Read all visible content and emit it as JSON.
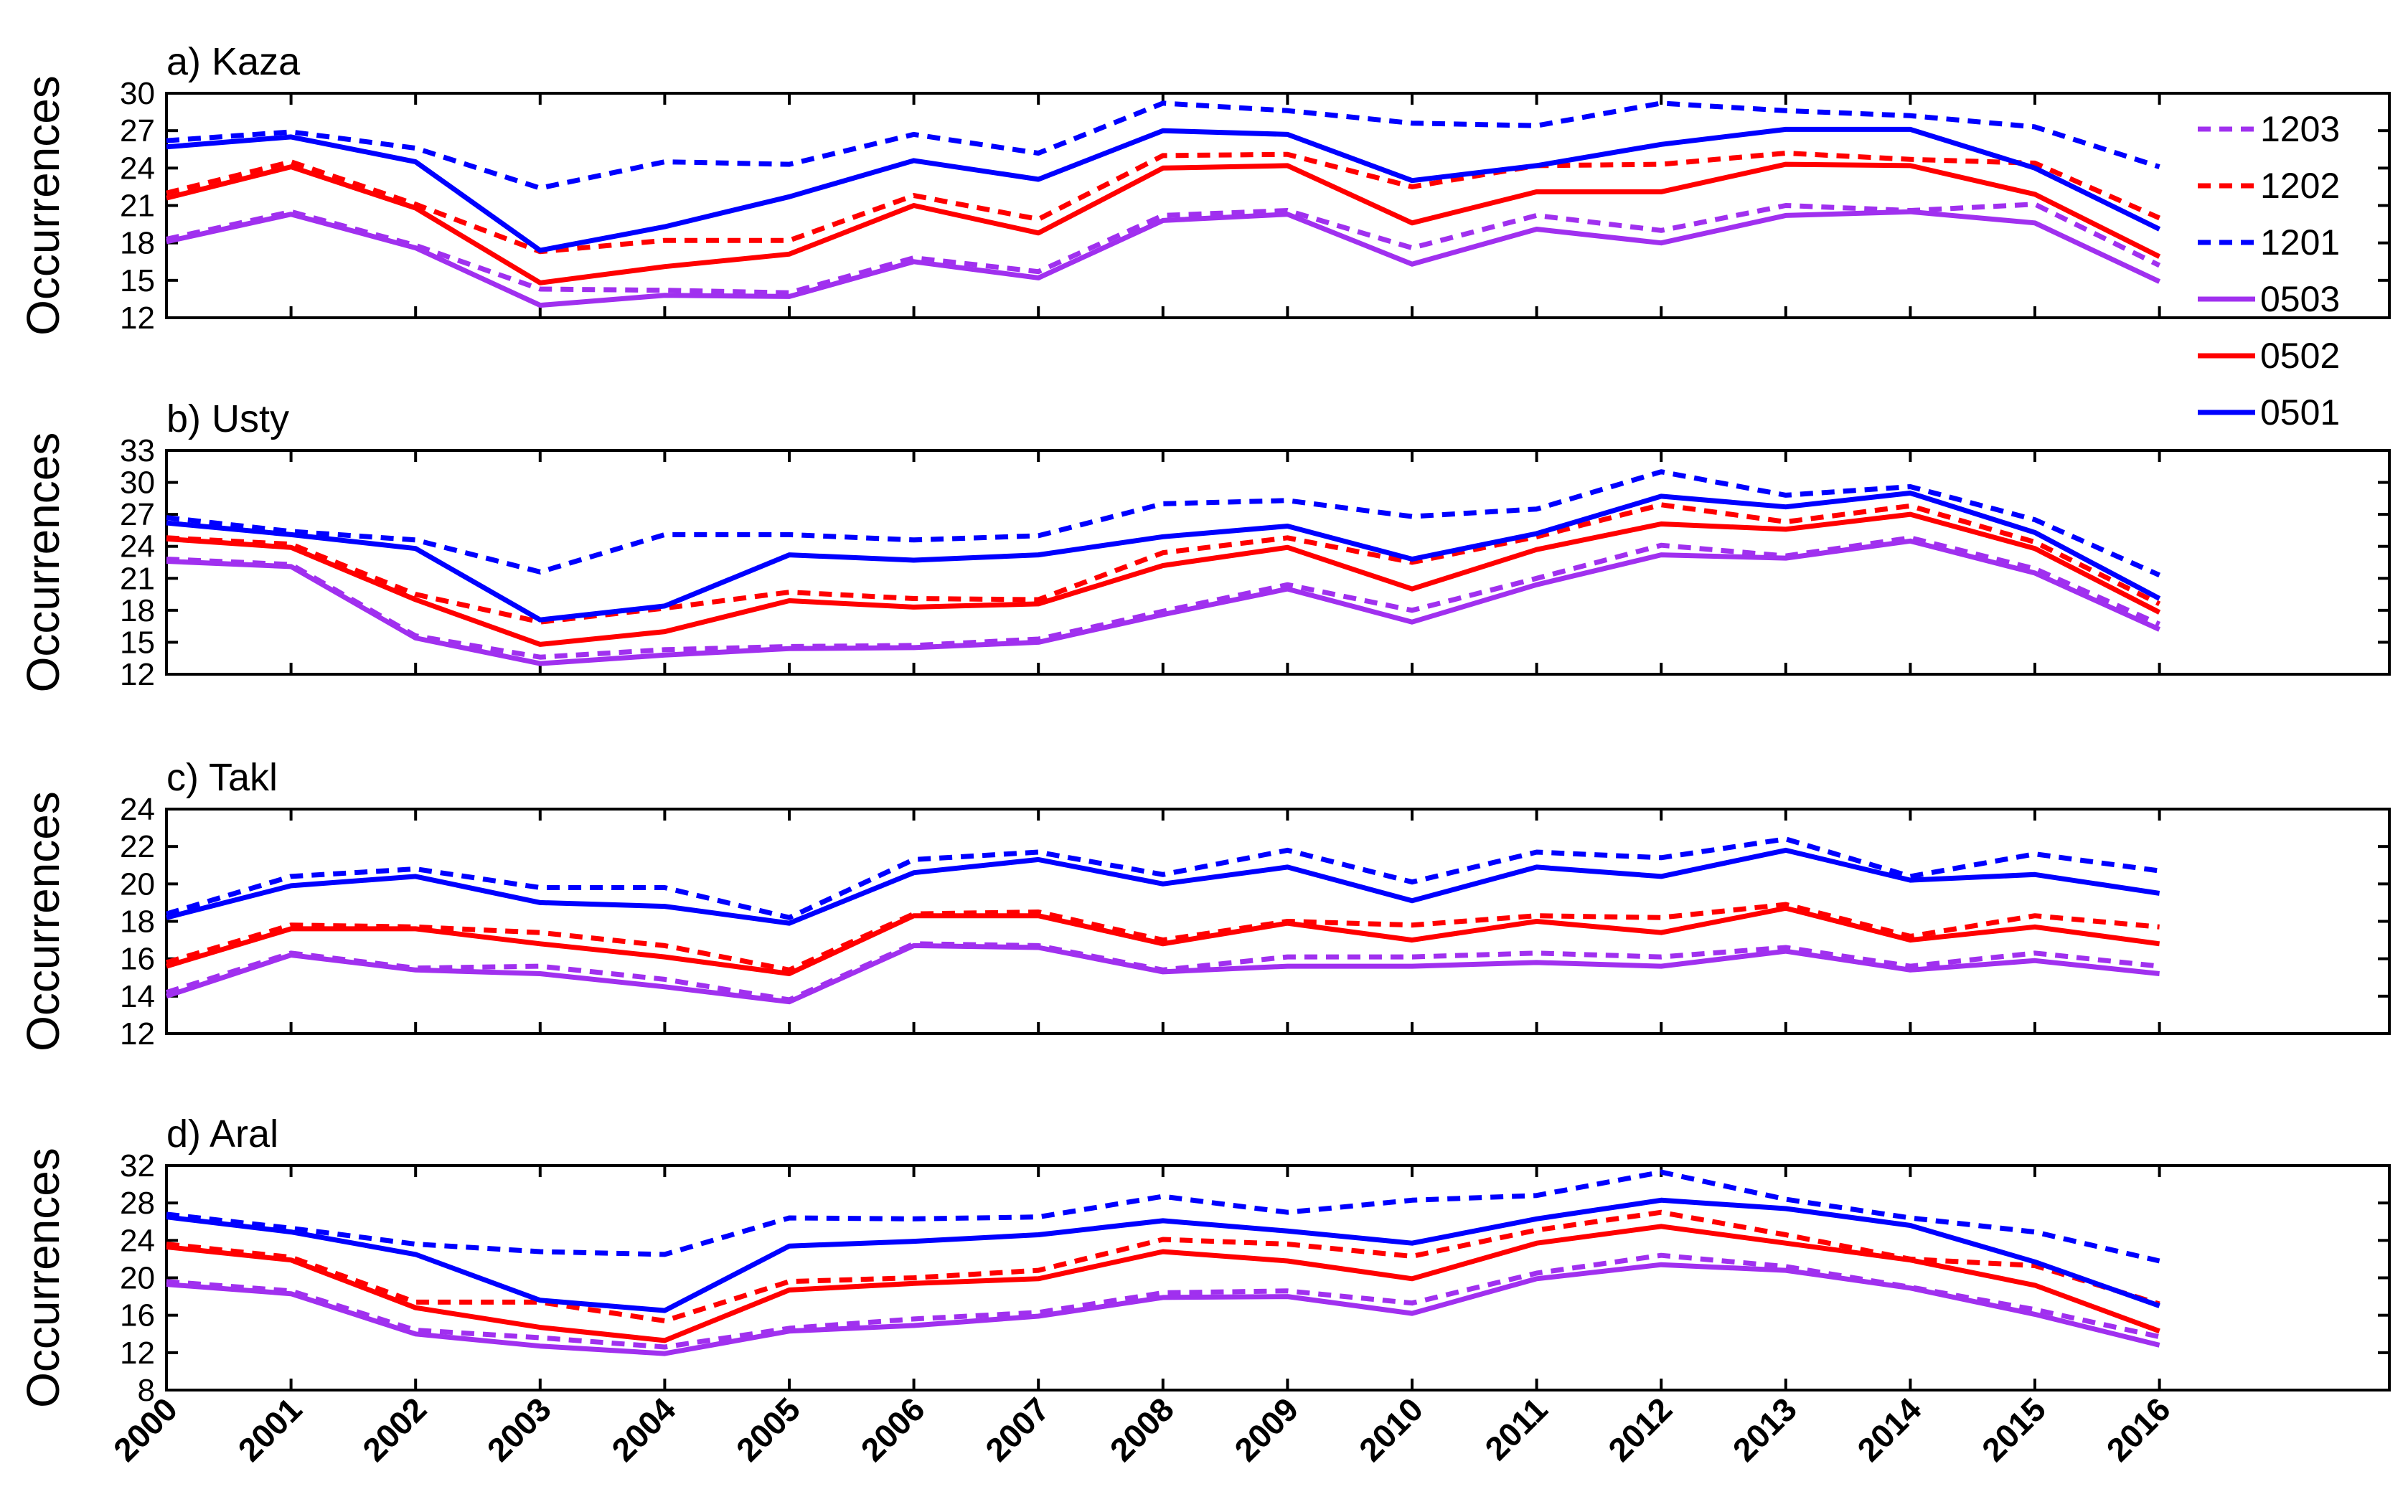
{
  "chart_data": [
    {
      "type": "line",
      "title": "a) Kaza",
      "ylabel": "Occurrences",
      "ylim": [
        12,
        30
      ],
      "yticks": [
        12,
        15,
        18,
        21,
        24,
        27,
        30
      ],
      "x": [
        2000,
        2001,
        2002,
        2003,
        2004,
        2005,
        2006,
        2007,
        2008,
        2009,
        2010,
        2011,
        2012,
        2013,
        2014,
        2015,
        2016
      ],
      "series": [
        {
          "name": "1203",
          "values": [
            18.3,
            20.5,
            17.8,
            14.3,
            14.2,
            14.0,
            16.8,
            15.7,
            20.2,
            20.6,
            17.6,
            20.2,
            19.0,
            21.0,
            20.6,
            21.1,
            16.2
          ]
        },
        {
          "name": "1202",
          "values": [
            22.0,
            24.5,
            21.1,
            17.3,
            18.2,
            18.2,
            21.8,
            19.9,
            25.0,
            25.1,
            22.5,
            24.2,
            24.3,
            25.2,
            24.7,
            24.4,
            20.0
          ]
        },
        {
          "name": "1201",
          "values": [
            26.2,
            26.9,
            25.6,
            22.4,
            24.5,
            24.3,
            26.7,
            25.2,
            29.2,
            28.6,
            27.6,
            27.4,
            29.2,
            28.6,
            28.2,
            27.3,
            24.1
          ]
        },
        {
          "name": "0503",
          "values": [
            18.1,
            20.3,
            17.6,
            13.0,
            13.8,
            13.7,
            16.5,
            15.2,
            19.8,
            20.3,
            16.3,
            19.1,
            18.0,
            20.2,
            20.5,
            19.6,
            14.9
          ]
        },
        {
          "name": "0502",
          "values": [
            21.6,
            24.1,
            20.8,
            14.8,
            16.1,
            17.1,
            21.0,
            18.8,
            24.0,
            24.2,
            19.6,
            22.1,
            22.1,
            24.3,
            24.2,
            21.9,
            16.9
          ]
        },
        {
          "name": "0501",
          "values": [
            25.7,
            26.5,
            24.5,
            17.4,
            19.3,
            21.7,
            24.6,
            23.1,
            27.0,
            26.7,
            23.0,
            24.2,
            25.9,
            27.1,
            27.1,
            24.0,
            19.1
          ]
        }
      ]
    },
    {
      "type": "line",
      "title": "b) Usty",
      "ylabel": "Occurrences",
      "ylim": [
        12,
        33
      ],
      "yticks": [
        12,
        15,
        18,
        21,
        24,
        27,
        30,
        33
      ],
      "x": [
        2000,
        2001,
        2002,
        2003,
        2004,
        2005,
        2006,
        2007,
        2008,
        2009,
        2010,
        2011,
        2012,
        2013,
        2014,
        2015,
        2016
      ],
      "series": [
        {
          "name": "1203",
          "values": [
            22.8,
            22.3,
            15.6,
            13.6,
            14.3,
            14.6,
            14.7,
            15.3,
            17.9,
            20.4,
            18.0,
            21.0,
            24.1,
            23.1,
            24.8,
            21.9,
            16.7
          ]
        },
        {
          "name": "1202",
          "values": [
            24.8,
            24.2,
            19.5,
            16.9,
            18.2,
            19.7,
            19.1,
            19.0,
            23.4,
            24.8,
            22.5,
            24.9,
            27.9,
            26.3,
            27.8,
            24.4,
            18.6
          ]
        },
        {
          "name": "1201",
          "values": [
            26.7,
            25.4,
            24.6,
            21.6,
            25.1,
            25.1,
            24.6,
            25.0,
            28.0,
            28.3,
            26.8,
            27.5,
            31.0,
            28.8,
            29.6,
            26.5,
            21.3
          ]
        },
        {
          "name": "0503",
          "values": [
            22.6,
            22.1,
            15.4,
            13.0,
            13.8,
            14.4,
            14.5,
            15.0,
            17.6,
            20.0,
            16.9,
            20.4,
            23.2,
            22.9,
            24.5,
            21.5,
            16.2
          ]
        },
        {
          "name": "0502",
          "values": [
            24.7,
            23.9,
            19.0,
            14.8,
            16.0,
            18.9,
            18.3,
            18.6,
            22.2,
            23.9,
            20.0,
            23.7,
            26.1,
            25.6,
            27.0,
            23.8,
            17.8
          ]
        },
        {
          "name": "0501",
          "values": [
            26.2,
            25.1,
            23.8,
            17.1,
            18.4,
            23.2,
            22.7,
            23.2,
            24.9,
            25.9,
            22.8,
            25.2,
            28.7,
            27.7,
            29.0,
            25.3,
            19.1
          ]
        }
      ]
    },
    {
      "type": "line",
      "title": "c) Takl",
      "ylabel": "Occurrences",
      "ylim": [
        12,
        24
      ],
      "yticks": [
        12,
        14,
        16,
        18,
        20,
        22,
        24
      ],
      "x": [
        2000,
        2001,
        2002,
        2003,
        2004,
        2005,
        2006,
        2007,
        2008,
        2009,
        2010,
        2011,
        2012,
        2013,
        2014,
        2015,
        2016
      ],
      "series": [
        {
          "name": "1203",
          "values": [
            14.2,
            16.3,
            15.5,
            15.6,
            14.9,
            13.8,
            16.8,
            16.7,
            15.4,
            16.1,
            16.1,
            16.3,
            16.1,
            16.6,
            15.6,
            16.3,
            15.6
          ]
        },
        {
          "name": "1202",
          "values": [
            15.8,
            17.8,
            17.7,
            17.4,
            16.7,
            15.4,
            18.4,
            18.5,
            17.0,
            18.0,
            17.8,
            18.3,
            18.2,
            18.9,
            17.2,
            18.3,
            17.7
          ]
        },
        {
          "name": "1201",
          "values": [
            18.4,
            20.4,
            20.8,
            19.8,
            19.8,
            18.2,
            21.3,
            21.7,
            20.5,
            21.8,
            20.1,
            21.7,
            21.4,
            22.4,
            20.4,
            21.6,
            20.7
          ]
        },
        {
          "name": "0503",
          "values": [
            14.0,
            16.2,
            15.4,
            15.2,
            14.5,
            13.7,
            16.7,
            16.6,
            15.3,
            15.6,
            15.6,
            15.8,
            15.6,
            16.4,
            15.4,
            15.9,
            15.2
          ]
        },
        {
          "name": "0502",
          "values": [
            15.6,
            17.6,
            17.6,
            16.8,
            16.1,
            15.2,
            18.3,
            18.3,
            16.8,
            17.9,
            17.0,
            18.0,
            17.4,
            18.7,
            17.0,
            17.7,
            16.8
          ]
        },
        {
          "name": "0501",
          "values": [
            18.2,
            19.9,
            20.4,
            19.0,
            18.8,
            17.9,
            20.6,
            21.3,
            20.0,
            20.9,
            19.1,
            20.9,
            20.4,
            21.8,
            20.2,
            20.5,
            19.5
          ]
        }
      ]
    },
    {
      "type": "line",
      "title": "d) Aral",
      "ylabel": "Occurrences",
      "ylim": [
        8,
        32
      ],
      "yticks": [
        8,
        12,
        16,
        20,
        24,
        28,
        32
      ],
      "x": [
        2000,
        2001,
        2002,
        2003,
        2004,
        2005,
        2006,
        2007,
        2008,
        2009,
        2010,
        2011,
        2012,
        2013,
        2014,
        2015,
        2016
      ],
      "series": [
        {
          "name": "1203",
          "values": [
            19.6,
            18.6,
            14.4,
            13.6,
            12.6,
            14.6,
            15.6,
            16.3,
            18.4,
            18.6,
            17.3,
            20.5,
            22.4,
            21.2,
            19.0,
            16.6,
            13.7
          ]
        },
        {
          "name": "1202",
          "values": [
            23.6,
            22.2,
            17.4,
            17.4,
            15.4,
            19.6,
            20.0,
            20.8,
            24.1,
            23.6,
            22.3,
            25.1,
            27.0,
            24.6,
            22.0,
            21.3,
            17.2
          ]
        },
        {
          "name": "1201",
          "values": [
            26.8,
            25.3,
            23.6,
            22.8,
            22.5,
            26.4,
            26.3,
            26.5,
            28.7,
            27.0,
            28.3,
            28.8,
            31.3,
            28.4,
            26.4,
            24.9,
            21.8
          ]
        },
        {
          "name": "0503",
          "values": [
            19.3,
            18.3,
            14.0,
            12.7,
            11.9,
            14.3,
            14.9,
            15.9,
            17.9,
            18.0,
            16.2,
            19.9,
            21.4,
            20.8,
            18.9,
            16.1,
            12.8
          ]
        },
        {
          "name": "0502",
          "values": [
            23.3,
            21.9,
            16.8,
            14.7,
            13.3,
            18.7,
            19.4,
            19.9,
            22.8,
            21.8,
            19.9,
            23.7,
            25.5,
            23.7,
            21.9,
            19.2,
            14.3
          ]
        },
        {
          "name": "0501",
          "values": [
            26.5,
            24.9,
            22.5,
            17.6,
            16.5,
            23.4,
            23.9,
            24.6,
            26.1,
            25.0,
            23.7,
            26.3,
            28.3,
            27.4,
            25.6,
            21.7,
            17.0
          ]
        }
      ]
    }
  ],
  "legend": {
    "placement": "right",
    "entries": [
      {
        "name": "1203",
        "color": "#a030ef",
        "style": "dashed"
      },
      {
        "name": "1202",
        "color": "#ff0000",
        "style": "dashed"
      },
      {
        "name": "1201",
        "color": "#0000ff",
        "style": "dashed"
      },
      {
        "name": "0503",
        "color": "#a030ef",
        "style": "solid"
      },
      {
        "name": "0502",
        "color": "#ff0000",
        "style": "solid"
      },
      {
        "name": "0501",
        "color": "#0000ff",
        "style": "solid"
      }
    ]
  },
  "x_tick_labels": [
    "2000",
    "2001",
    "2002",
    "2003",
    "2004",
    "2005",
    "2006",
    "2007",
    "2008",
    "2009",
    "2010",
    "2011",
    "2012",
    "2013",
    "2014",
    "2015",
    "2016"
  ]
}
